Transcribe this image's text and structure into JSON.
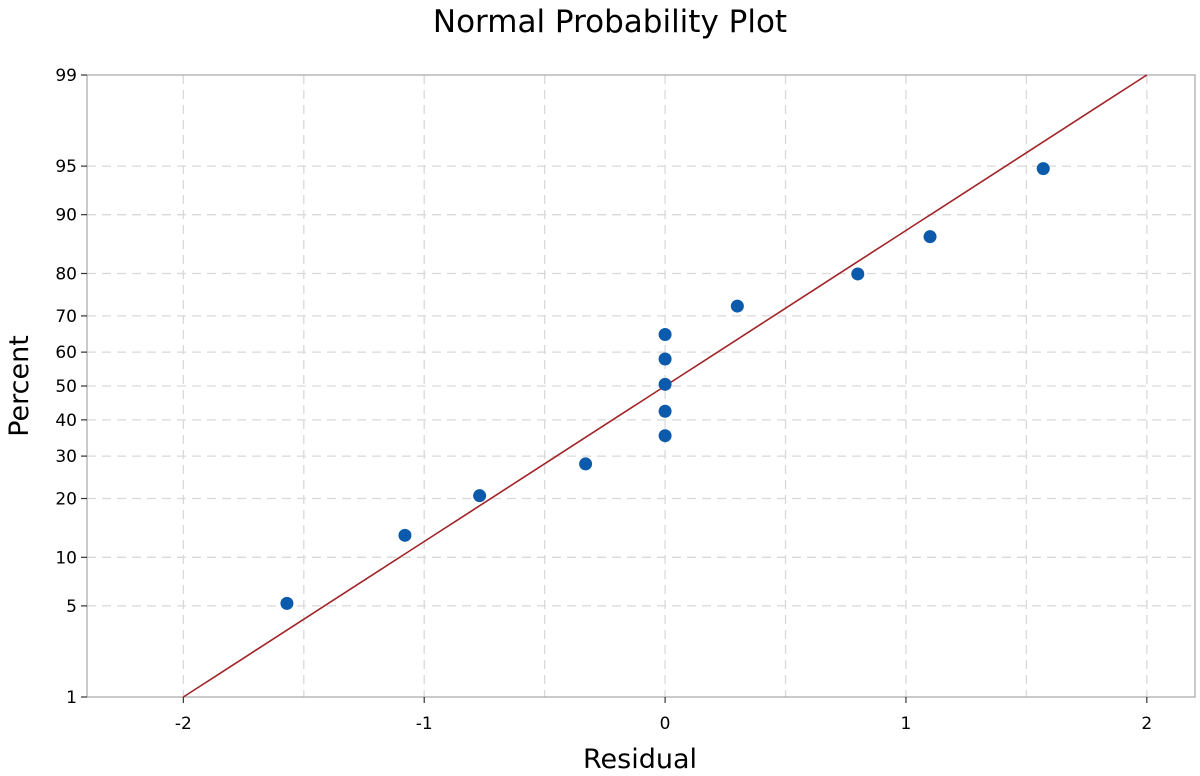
{
  "chart_data": {
    "type": "scatter",
    "title": "Normal Probability Plot",
    "xlabel": "Residual",
    "ylabel": "Percent",
    "xlim": [
      -2.4,
      2.2
    ],
    "ylim": [
      1,
      99
    ],
    "y_scale": "normal-probability",
    "grid": true,
    "x_ticks": [
      -2,
      -1,
      0,
      1,
      2
    ],
    "x_tick_labels": [
      "-2",
      "-1",
      "0",
      "1",
      "2"
    ],
    "y_ticks": [
      1,
      5,
      10,
      20,
      30,
      40,
      50,
      60,
      70,
      80,
      90,
      95,
      99
    ],
    "y_tick_labels": [
      "1",
      "5",
      "10",
      "20",
      "30",
      "40",
      "50",
      "60",
      "70",
      "80",
      "90",
      "95",
      "99"
    ],
    "points": [
      {
        "x": -1.57,
        "y": 5.2
      },
      {
        "x": -1.08,
        "y": 13.2
      },
      {
        "x": -0.77,
        "y": 20.6
      },
      {
        "x": -0.33,
        "y": 28.0
      },
      {
        "x": 0.0,
        "y": 35.5
      },
      {
        "x": 0.0,
        "y": 42.5
      },
      {
        "x": 0.0,
        "y": 50.5
      },
      {
        "x": 0.0,
        "y": 58.0
      },
      {
        "x": 0.0,
        "y": 65.0
      },
      {
        "x": 0.3,
        "y": 72.5
      },
      {
        "x": 0.8,
        "y": 79.9
      },
      {
        "x": 1.1,
        "y": 86.8
      },
      {
        "x": 1.57,
        "y": 94.8
      }
    ],
    "fit_line": {
      "x": [
        -2.0,
        2.0
      ],
      "y": [
        1,
        99
      ]
    },
    "colors": {
      "points": "#0b5aab",
      "fit_line": "#a02428",
      "grid": "#d9d9d9",
      "frame": "#a6a6a6"
    }
  }
}
